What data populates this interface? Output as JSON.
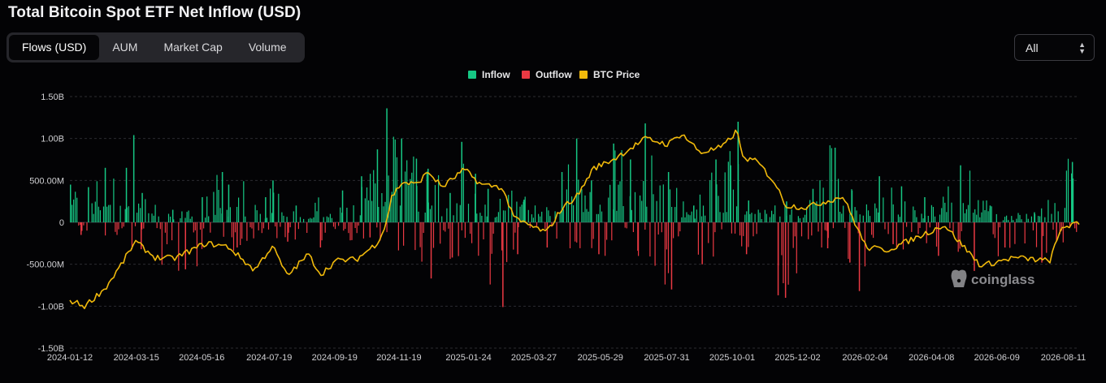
{
  "header": {
    "title": "Total Bitcoin Spot ETF Net Inflow (USD)"
  },
  "tabs": [
    {
      "label": "Flows (USD)",
      "active": true
    },
    {
      "label": "AUM",
      "active": false
    },
    {
      "label": "Market Cap",
      "active": false
    },
    {
      "label": "Volume",
      "active": false
    }
  ],
  "range_select": {
    "value": "All"
  },
  "watermark": "coinglass",
  "chart_data": {
    "type": "bar",
    "title": "",
    "xlabel": "",
    "ylabel": "",
    "ylim": [
      -1500000000,
      1500000000
    ],
    "y_ticks": [
      {
        "value": 1500000000,
        "label": "1.50B"
      },
      {
        "value": 1000000000,
        "label": "1.00B"
      },
      {
        "value": 500000000,
        "label": "500.00M"
      },
      {
        "value": 0,
        "label": "0"
      },
      {
        "value": -500000000,
        "label": "-500.00M"
      },
      {
        "value": -1000000000,
        "label": "-1.00B"
      },
      {
        "value": -1500000000,
        "label": "-1.50B"
      }
    ],
    "x_ticks": [
      "2024-01-12",
      "2024-03-15",
      "2024-05-16",
      "2024-07-19",
      "2024-09-19",
      "2024-11-19",
      "2025-01-24",
      "2025-03-27",
      "2025-05-29",
      "2025-07-31",
      "2025-10-01",
      "2025-12-02",
      "2026-02-04",
      "2026-04-08",
      "2026-06-09",
      "2026-08-11"
    ],
    "x_range": [
      "2024-01-12",
      "2026-08-26"
    ],
    "grid": "horizontal dashed",
    "legend_position": "top-center",
    "colors": {
      "inflow": "#16c784",
      "outflow": "#ea3943",
      "btc_price": "#f0b90b"
    },
    "series": [
      {
        "name": "Inflow",
        "color": "#16c784",
        "points": [
          [
            "2024-01-12",
            450000000
          ],
          [
            "2024-01-29",
            420000000
          ],
          [
            "2024-02-14",
            650000000
          ],
          [
            "2024-03-05",
            650000000
          ],
          [
            "2024-03-12",
            1040000000
          ],
          [
            "2024-03-20",
            350000000
          ],
          [
            "2024-04-18",
            150000000
          ],
          [
            "2024-05-16",
            300000000
          ],
          [
            "2024-06-04",
            600000000
          ],
          [
            "2024-06-10",
            450000000
          ],
          [
            "2024-07-15",
            300000000
          ],
          [
            "2024-07-22",
            500000000
          ],
          [
            "2024-08-13",
            200000000
          ],
          [
            "2024-09-26",
            380000000
          ],
          [
            "2024-10-14",
            550000000
          ],
          [
            "2024-10-29",
            870000000
          ],
          [
            "2024-11-07",
            1360000000
          ],
          [
            "2024-11-21",
            1000000000
          ],
          [
            "2024-12-05",
            760000000
          ],
          [
            "2024-12-16",
            640000000
          ],
          [
            "2025-01-06",
            350000000
          ],
          [
            "2025-01-17",
            960000000
          ],
          [
            "2025-01-30",
            580000000
          ],
          [
            "2025-02-11",
            400000000
          ],
          [
            "2025-03-17",
            270000000
          ],
          [
            "2025-04-22",
            600000000
          ],
          [
            "2025-05-06",
            1000000000
          ],
          [
            "2025-05-20",
            500000000
          ],
          [
            "2025-06-10",
            940000000
          ],
          [
            "2025-06-26",
            750000000
          ],
          [
            "2025-07-10",
            1180000000
          ],
          [
            "2025-08-01",
            600000000
          ],
          [
            "2025-08-25",
            200000000
          ],
          [
            "2025-09-15",
            750000000
          ],
          [
            "2025-09-29",
            680000000
          ],
          [
            "2025-10-06",
            1200000000
          ],
          [
            "2025-10-16",
            260000000
          ],
          [
            "2025-11-21",
            250000000
          ],
          [
            "2025-12-16",
            400000000
          ],
          [
            "2026-01-06",
            890000000
          ],
          [
            "2026-01-22",
            380000000
          ],
          [
            "2026-02-17",
            550000000
          ],
          [
            "2026-03-10",
            430000000
          ],
          [
            "2026-04-01",
            300000000
          ],
          [
            "2026-05-05",
            680000000
          ],
          [
            "2026-06-02",
            200000000
          ],
          [
            "2026-07-14",
            120000000
          ],
          [
            "2026-08-19",
            720000000
          ]
        ]
      },
      {
        "name": "Outflow",
        "color": "#ea3943",
        "points": [
          [
            "2024-01-22",
            -150000000
          ],
          [
            "2024-03-19",
            -320000000
          ],
          [
            "2024-04-30",
            -560000000
          ],
          [
            "2024-06-18",
            -300000000
          ],
          [
            "2024-08-05",
            -230000000
          ],
          [
            "2024-09-05",
            -300000000
          ],
          [
            "2024-10-22",
            -180000000
          ],
          [
            "2024-12-19",
            -670000000
          ],
          [
            "2025-01-08",
            -420000000
          ],
          [
            "2025-02-25",
            -1010000000
          ],
          [
            "2025-03-11",
            -380000000
          ],
          [
            "2025-04-08",
            -300000000
          ],
          [
            "2025-05-27",
            -380000000
          ],
          [
            "2025-07-03",
            -340000000
          ],
          [
            "2025-08-04",
            -800000000
          ],
          [
            "2025-09-02",
            -500000000
          ],
          [
            "2025-10-14",
            -380000000
          ],
          [
            "2025-11-13",
            -870000000
          ],
          [
            "2025-11-20",
            -900000000
          ],
          [
            "2025-12-30",
            -310000000
          ],
          [
            "2026-01-20",
            -480000000
          ],
          [
            "2026-01-29",
            -820000000
          ],
          [
            "2026-03-02",
            -260000000
          ],
          [
            "2026-04-14",
            -400000000
          ],
          [
            "2026-05-18",
            -580000000
          ],
          [
            "2026-06-16",
            -300000000
          ],
          [
            "2026-07-21",
            -480000000
          ],
          [
            "2026-08-04",
            -220000000
          ]
        ]
      },
      {
        "name": "BTC Price",
        "color": "#f0b90b",
        "points": [
          [
            "2024-01-12",
            -930000000
          ],
          [
            "2024-01-26",
            -1000000000
          ],
          [
            "2024-02-15",
            -780000000
          ],
          [
            "2024-03-01",
            -500000000
          ],
          [
            "2024-03-14",
            -230000000
          ],
          [
            "2024-04-02",
            -420000000
          ],
          [
            "2024-04-20",
            -430000000
          ],
          [
            "2024-05-20",
            -250000000
          ],
          [
            "2024-06-10",
            -290000000
          ],
          [
            "2024-07-05",
            -570000000
          ],
          [
            "2024-07-22",
            -280000000
          ],
          [
            "2024-08-05",
            -640000000
          ],
          [
            "2024-08-25",
            -380000000
          ],
          [
            "2024-09-06",
            -620000000
          ],
          [
            "2024-09-20",
            -460000000
          ],
          [
            "2024-10-10",
            -440000000
          ],
          [
            "2024-10-29",
            -250000000
          ],
          [
            "2024-11-06",
            -50000000
          ],
          [
            "2024-11-12",
            300000000
          ],
          [
            "2024-11-22",
            480000000
          ],
          [
            "2024-12-05",
            450000000
          ],
          [
            "2024-12-17",
            600000000
          ],
          [
            "2024-12-30",
            420000000
          ],
          [
            "2025-01-20",
            630000000
          ],
          [
            "2025-02-05",
            450000000
          ],
          [
            "2025-02-24",
            420000000
          ],
          [
            "2025-03-10",
            30000000
          ],
          [
            "2025-04-08",
            -120000000
          ],
          [
            "2025-04-22",
            160000000
          ],
          [
            "2025-05-08",
            330000000
          ],
          [
            "2025-05-22",
            640000000
          ],
          [
            "2025-06-10",
            750000000
          ],
          [
            "2025-07-11",
            1000000000
          ],
          [
            "2025-08-01",
            930000000
          ],
          [
            "2025-08-14",
            1060000000
          ],
          [
            "2025-09-01",
            830000000
          ],
          [
            "2025-09-22",
            900000000
          ],
          [
            "2025-10-06",
            1100000000
          ],
          [
            "2025-10-10",
            780000000
          ],
          [
            "2025-10-25",
            720000000
          ],
          [
            "2025-11-10",
            480000000
          ],
          [
            "2025-11-21",
            200000000
          ],
          [
            "2025-12-10",
            180000000
          ],
          [
            "2026-01-14",
            310000000
          ],
          [
            "2026-02-05",
            -300000000
          ],
          [
            "2026-02-25",
            -330000000
          ],
          [
            "2026-03-25",
            -180000000
          ],
          [
            "2026-04-20",
            -30000000
          ],
          [
            "2026-05-25",
            -520000000
          ],
          [
            "2026-06-25",
            -420000000
          ],
          [
            "2026-07-29",
            -460000000
          ],
          [
            "2026-08-10",
            -50000000
          ],
          [
            "2026-08-26",
            -20000000
          ]
        ]
      }
    ]
  }
}
